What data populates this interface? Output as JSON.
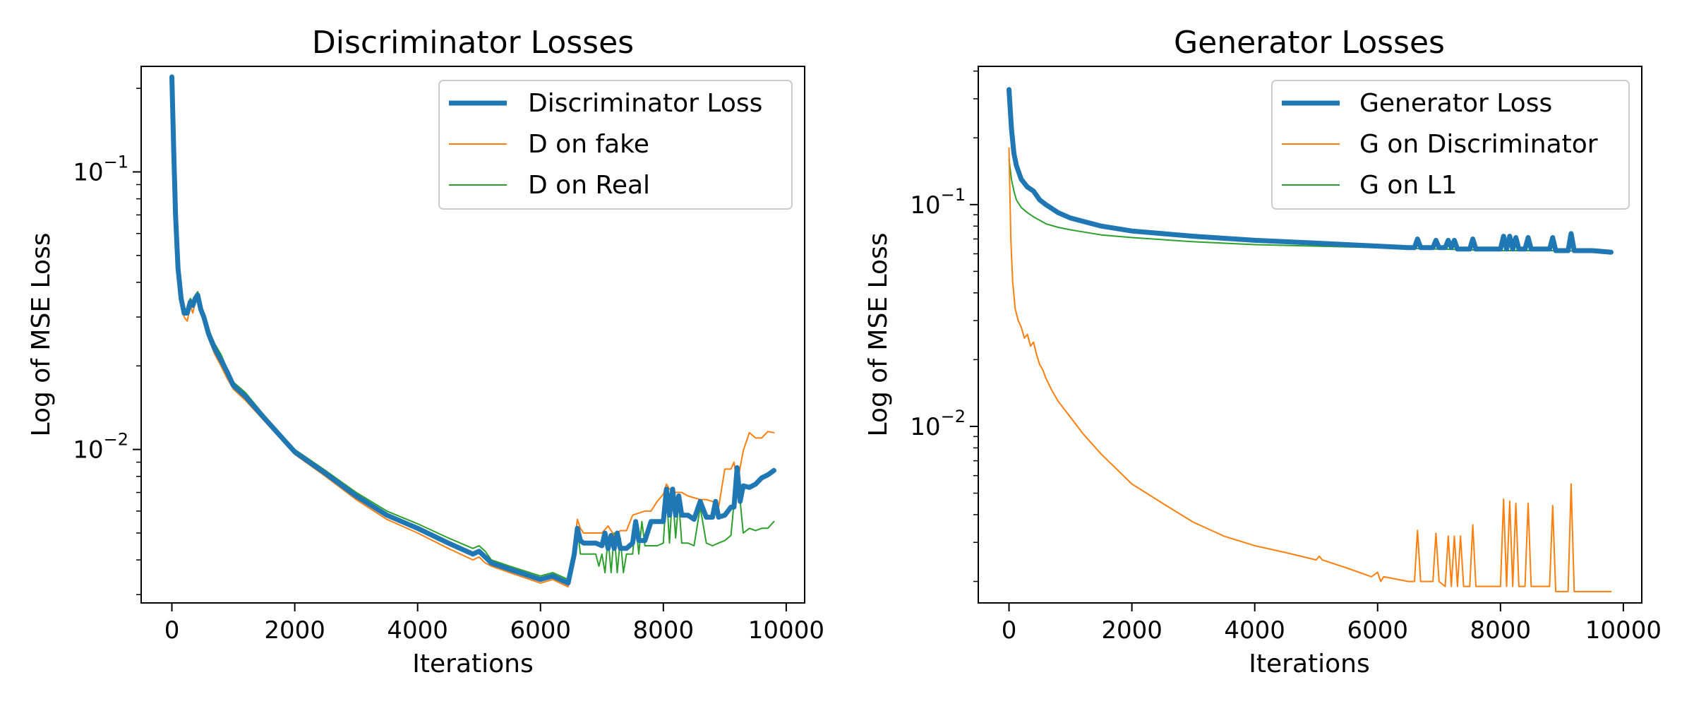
{
  "chart_data": [
    {
      "type": "line",
      "title": "Discriminator Losses",
      "xlabel": "Iterations",
      "ylabel": "Log of MSE Loss",
      "yscale": "log",
      "xlim": [
        -500,
        10300
      ],
      "ylim": [
        0.0028,
        0.24
      ],
      "grid": false,
      "legend_position": "top-right",
      "x_ticks": [
        0,
        2000,
        4000,
        6000,
        8000,
        10000
      ],
      "x_tick_labels": [
        "0",
        "2000",
        "4000",
        "6000",
        "8000",
        "10000"
      ],
      "y_ticks": [
        {
          "value": 0.1,
          "base": "10",
          "exp": "−1"
        },
        {
          "value": 0.01,
          "base": "10",
          "exp": "−2"
        }
      ],
      "series": [
        {
          "name": "Discriminator Loss",
          "color": "#1f77b4",
          "width": 7,
          "x": [
            0,
            30,
            60,
            100,
            150,
            200,
            250,
            300,
            340,
            380,
            420,
            470,
            520,
            600,
            700,
            800,
            900,
            1000,
            1200,
            1500,
            2000,
            2500,
            3000,
            3500,
            4000,
            4500,
            4900,
            5000,
            5100,
            5200,
            5500,
            6000,
            6200,
            6450,
            6550,
            6600,
            6650,
            6700,
            6800,
            6900,
            7000,
            7050,
            7100,
            7150,
            7200,
            7250,
            7300,
            7350,
            7400,
            7500,
            7550,
            7600,
            7700,
            7800,
            7900,
            8000,
            8050,
            8100,
            8150,
            8200,
            8250,
            8300,
            8400,
            8500,
            8600,
            8700,
            8800,
            8850,
            8900,
            9000,
            9100,
            9150,
            9200,
            9250,
            9300,
            9400,
            9500,
            9600,
            9700,
            9800
          ],
          "y": [
            0.22,
            0.12,
            0.07,
            0.045,
            0.035,
            0.031,
            0.031,
            0.034,
            0.033,
            0.035,
            0.036,
            0.032,
            0.03,
            0.026,
            0.023,
            0.021,
            0.019,
            0.017,
            0.0155,
            0.013,
            0.0098,
            0.0082,
            0.0068,
            0.0058,
            0.0052,
            0.0046,
            0.0042,
            0.0043,
            0.0041,
            0.0039,
            0.0037,
            0.0034,
            0.0035,
            0.0033,
            0.0042,
            0.0052,
            0.0047,
            0.0046,
            0.0046,
            0.0046,
            0.0045,
            0.005,
            0.0044,
            0.0049,
            0.0044,
            0.005,
            0.0044,
            0.0044,
            0.0044,
            0.0046,
            0.0055,
            0.0047,
            0.0047,
            0.0055,
            0.0055,
            0.0055,
            0.0072,
            0.0058,
            0.0072,
            0.0058,
            0.0068,
            0.0058,
            0.0058,
            0.0056,
            0.0065,
            0.0057,
            0.0057,
            0.0065,
            0.0057,
            0.0058,
            0.0062,
            0.0062,
            0.0086,
            0.0065,
            0.0074,
            0.0073,
            0.0075,
            0.0079,
            0.0081,
            0.0084
          ]
        },
        {
          "name": "D on fake",
          "color": "#ff7f0e",
          "width": 2,
          "x": [
            0,
            30,
            60,
            100,
            150,
            200,
            250,
            300,
            340,
            380,
            420,
            470,
            520,
            600,
            700,
            800,
            900,
            1000,
            1200,
            1500,
            2000,
            2500,
            3000,
            3500,
            4000,
            4500,
            4900,
            5000,
            5100,
            5200,
            5500,
            6000,
            6200,
            6450,
            6550,
            6600,
            6650,
            6700,
            6800,
            6900,
            7000,
            7100,
            7200,
            7300,
            7400,
            7500,
            7600,
            7700,
            7800,
            7900,
            8000,
            8050,
            8100,
            8200,
            8300,
            8400,
            8500,
            8600,
            8700,
            8800,
            8900,
            9000,
            9100,
            9150,
            9200,
            9300,
            9400,
            9500,
            9600,
            9700,
            9800
          ],
          "y": [
            0.21,
            0.11,
            0.065,
            0.043,
            0.034,
            0.03,
            0.029,
            0.033,
            0.031,
            0.034,
            0.035,
            0.031,
            0.029,
            0.025,
            0.022,
            0.02,
            0.018,
            0.0165,
            0.015,
            0.0127,
            0.0096,
            0.008,
            0.0066,
            0.0056,
            0.005,
            0.0044,
            0.004,
            0.0041,
            0.0039,
            0.0038,
            0.0036,
            0.0033,
            0.0034,
            0.0032,
            0.0045,
            0.0056,
            0.0052,
            0.005,
            0.005,
            0.005,
            0.005,
            0.0053,
            0.0049,
            0.0051,
            0.0051,
            0.0058,
            0.0059,
            0.006,
            0.006,
            0.0065,
            0.0069,
            0.0075,
            0.0072,
            0.007,
            0.007,
            0.0068,
            0.0067,
            0.0066,
            0.0066,
            0.0065,
            0.0062,
            0.0085,
            0.0085,
            0.009,
            0.0075,
            0.0099,
            0.0115,
            0.011,
            0.011,
            0.0116,
            0.0115
          ]
        },
        {
          "name": "D on Real",
          "color": "#2ca02c",
          "width": 2,
          "x": [
            0,
            30,
            60,
            100,
            150,
            200,
            250,
            300,
            340,
            380,
            420,
            470,
            520,
            600,
            700,
            800,
            900,
            1000,
            1200,
            1500,
            2000,
            2500,
            3000,
            3500,
            4000,
            4500,
            4900,
            5000,
            5100,
            5200,
            5500,
            6000,
            6200,
            6450,
            6550,
            6600,
            6650,
            6700,
            6800,
            6900,
            6950,
            7000,
            7050,
            7100,
            7150,
            7200,
            7250,
            7300,
            7350,
            7400,
            7500,
            7550,
            7600,
            7650,
            7700,
            7800,
            7900,
            8000,
            8050,
            8100,
            8150,
            8200,
            8250,
            8300,
            8400,
            8500,
            8600,
            8700,
            8800,
            8900,
            9000,
            9100,
            9200,
            9300,
            9400,
            9500,
            9600,
            9700,
            9800
          ],
          "y": [
            0.22,
            0.12,
            0.07,
            0.046,
            0.036,
            0.032,
            0.032,
            0.035,
            0.034,
            0.036,
            0.037,
            0.033,
            0.031,
            0.027,
            0.024,
            0.022,
            0.0195,
            0.0175,
            0.016,
            0.0133,
            0.01,
            0.0084,
            0.007,
            0.006,
            0.0054,
            0.0048,
            0.0044,
            0.0045,
            0.0043,
            0.004,
            0.0038,
            0.0035,
            0.0036,
            0.0034,
            0.004,
            0.0052,
            0.0042,
            0.0042,
            0.0042,
            0.0042,
            0.0038,
            0.0042,
            0.0036,
            0.0048,
            0.0036,
            0.005,
            0.0036,
            0.0048,
            0.0036,
            0.0042,
            0.0042,
            0.0055,
            0.0042,
            0.0055,
            0.0045,
            0.0045,
            0.0045,
            0.0046,
            0.007,
            0.0046,
            0.007,
            0.0048,
            0.0065,
            0.0046,
            0.0046,
            0.0045,
            0.0062,
            0.0046,
            0.0045,
            0.0046,
            0.0047,
            0.0049,
            0.0085,
            0.005,
            0.0052,
            0.0051,
            0.0052,
            0.0052,
            0.0055
          ]
        }
      ]
    },
    {
      "type": "line",
      "title": "Generator Losses",
      "xlabel": "Iterations",
      "ylabel": "Log of MSE Loss",
      "yscale": "log",
      "xlim": [
        -500,
        10300
      ],
      "ylim": [
        0.0016,
        0.42
      ],
      "grid": false,
      "legend_position": "top-right",
      "x_ticks": [
        0,
        2000,
        4000,
        6000,
        8000,
        10000
      ],
      "x_tick_labels": [
        "0",
        "2000",
        "4000",
        "6000",
        "8000",
        "10000"
      ],
      "y_ticks": [
        {
          "value": 0.1,
          "base": "10",
          "exp": "−1"
        },
        {
          "value": 0.01,
          "base": "10",
          "exp": "−2"
        }
      ],
      "series": [
        {
          "name": "Generator Loss",
          "color": "#1f77b4",
          "width": 7,
          "x": [
            0,
            40,
            80,
            120,
            200,
            300,
            400,
            500,
            600,
            800,
            1000,
            1500,
            2000,
            3000,
            4000,
            5000,
            5500,
            6000,
            6500,
            6600,
            6650,
            6700,
            6800,
            6900,
            6950,
            7000,
            7100,
            7150,
            7200,
            7250,
            7300,
            7400,
            7500,
            7550,
            7600,
            7700,
            8000,
            8050,
            8100,
            8150,
            8200,
            8250,
            8300,
            8400,
            8450,
            8500,
            8800,
            8850,
            8900,
            9100,
            9150,
            9200,
            9300,
            9500,
            9800
          ],
          "y": [
            0.33,
            0.22,
            0.17,
            0.15,
            0.13,
            0.12,
            0.115,
            0.105,
            0.1,
            0.092,
            0.087,
            0.08,
            0.076,
            0.072,
            0.069,
            0.067,
            0.066,
            0.065,
            0.064,
            0.064,
            0.07,
            0.064,
            0.064,
            0.064,
            0.069,
            0.064,
            0.064,
            0.069,
            0.064,
            0.069,
            0.063,
            0.063,
            0.063,
            0.07,
            0.063,
            0.063,
            0.063,
            0.072,
            0.063,
            0.072,
            0.063,
            0.071,
            0.063,
            0.063,
            0.071,
            0.063,
            0.063,
            0.071,
            0.062,
            0.062,
            0.074,
            0.062,
            0.062,
            0.062,
            0.061
          ]
        },
        {
          "name": "G on Discriminator",
          "color": "#ff7f0e",
          "width": 2,
          "x": [
            0,
            30,
            60,
            100,
            150,
            200,
            250,
            300,
            350,
            400,
            450,
            500,
            550,
            600,
            700,
            800,
            1000,
            1200,
            1500,
            2000,
            2500,
            3000,
            3500,
            4000,
            4500,
            5000,
            5050,
            5100,
            5500,
            5900,
            6000,
            6050,
            6100,
            6500,
            6600,
            6650,
            6700,
            6800,
            6900,
            6950,
            7000,
            7100,
            7150,
            7200,
            7250,
            7300,
            7350,
            7400,
            7500,
            7550,
            7600,
            7700,
            8000,
            8050,
            8100,
            8150,
            8200,
            8250,
            8300,
            8400,
            8450,
            8500,
            8800,
            8850,
            8900,
            9100,
            9150,
            9200,
            9300,
            9500,
            9800
          ],
          "y": [
            0.18,
            0.07,
            0.045,
            0.034,
            0.03,
            0.028,
            0.025,
            0.026,
            0.023,
            0.024,
            0.021,
            0.019,
            0.018,
            0.0165,
            0.0145,
            0.013,
            0.011,
            0.0093,
            0.0075,
            0.0055,
            0.0045,
            0.0037,
            0.0032,
            0.0029,
            0.0027,
            0.0025,
            0.0026,
            0.0025,
            0.0023,
            0.0021,
            0.0022,
            0.002,
            0.0021,
            0.002,
            0.002,
            0.0034,
            0.002,
            0.002,
            0.002,
            0.0033,
            0.002,
            0.0019,
            0.0032,
            0.0019,
            0.0032,
            0.0019,
            0.0032,
            0.0019,
            0.0019,
            0.0036,
            0.0019,
            0.0019,
            0.0019,
            0.0047,
            0.0019,
            0.0046,
            0.0019,
            0.0045,
            0.0019,
            0.0019,
            0.0045,
            0.0019,
            0.0019,
            0.0044,
            0.0018,
            0.0018,
            0.0055,
            0.0018,
            0.0018,
            0.0018,
            0.0018
          ]
        },
        {
          "name": "G on L1",
          "color": "#2ca02c",
          "width": 2,
          "x": [
            0,
            40,
            80,
            120,
            200,
            300,
            400,
            500,
            600,
            800,
            1000,
            1500,
            2000,
            3000,
            4000,
            5000,
            6000,
            7000,
            8000,
            9000,
            9800
          ],
          "y": [
            0.16,
            0.13,
            0.115,
            0.105,
            0.097,
            0.092,
            0.088,
            0.085,
            0.082,
            0.079,
            0.077,
            0.073,
            0.071,
            0.068,
            0.066,
            0.065,
            0.064,
            0.063,
            0.062,
            0.062,
            0.061
          ]
        }
      ]
    }
  ]
}
